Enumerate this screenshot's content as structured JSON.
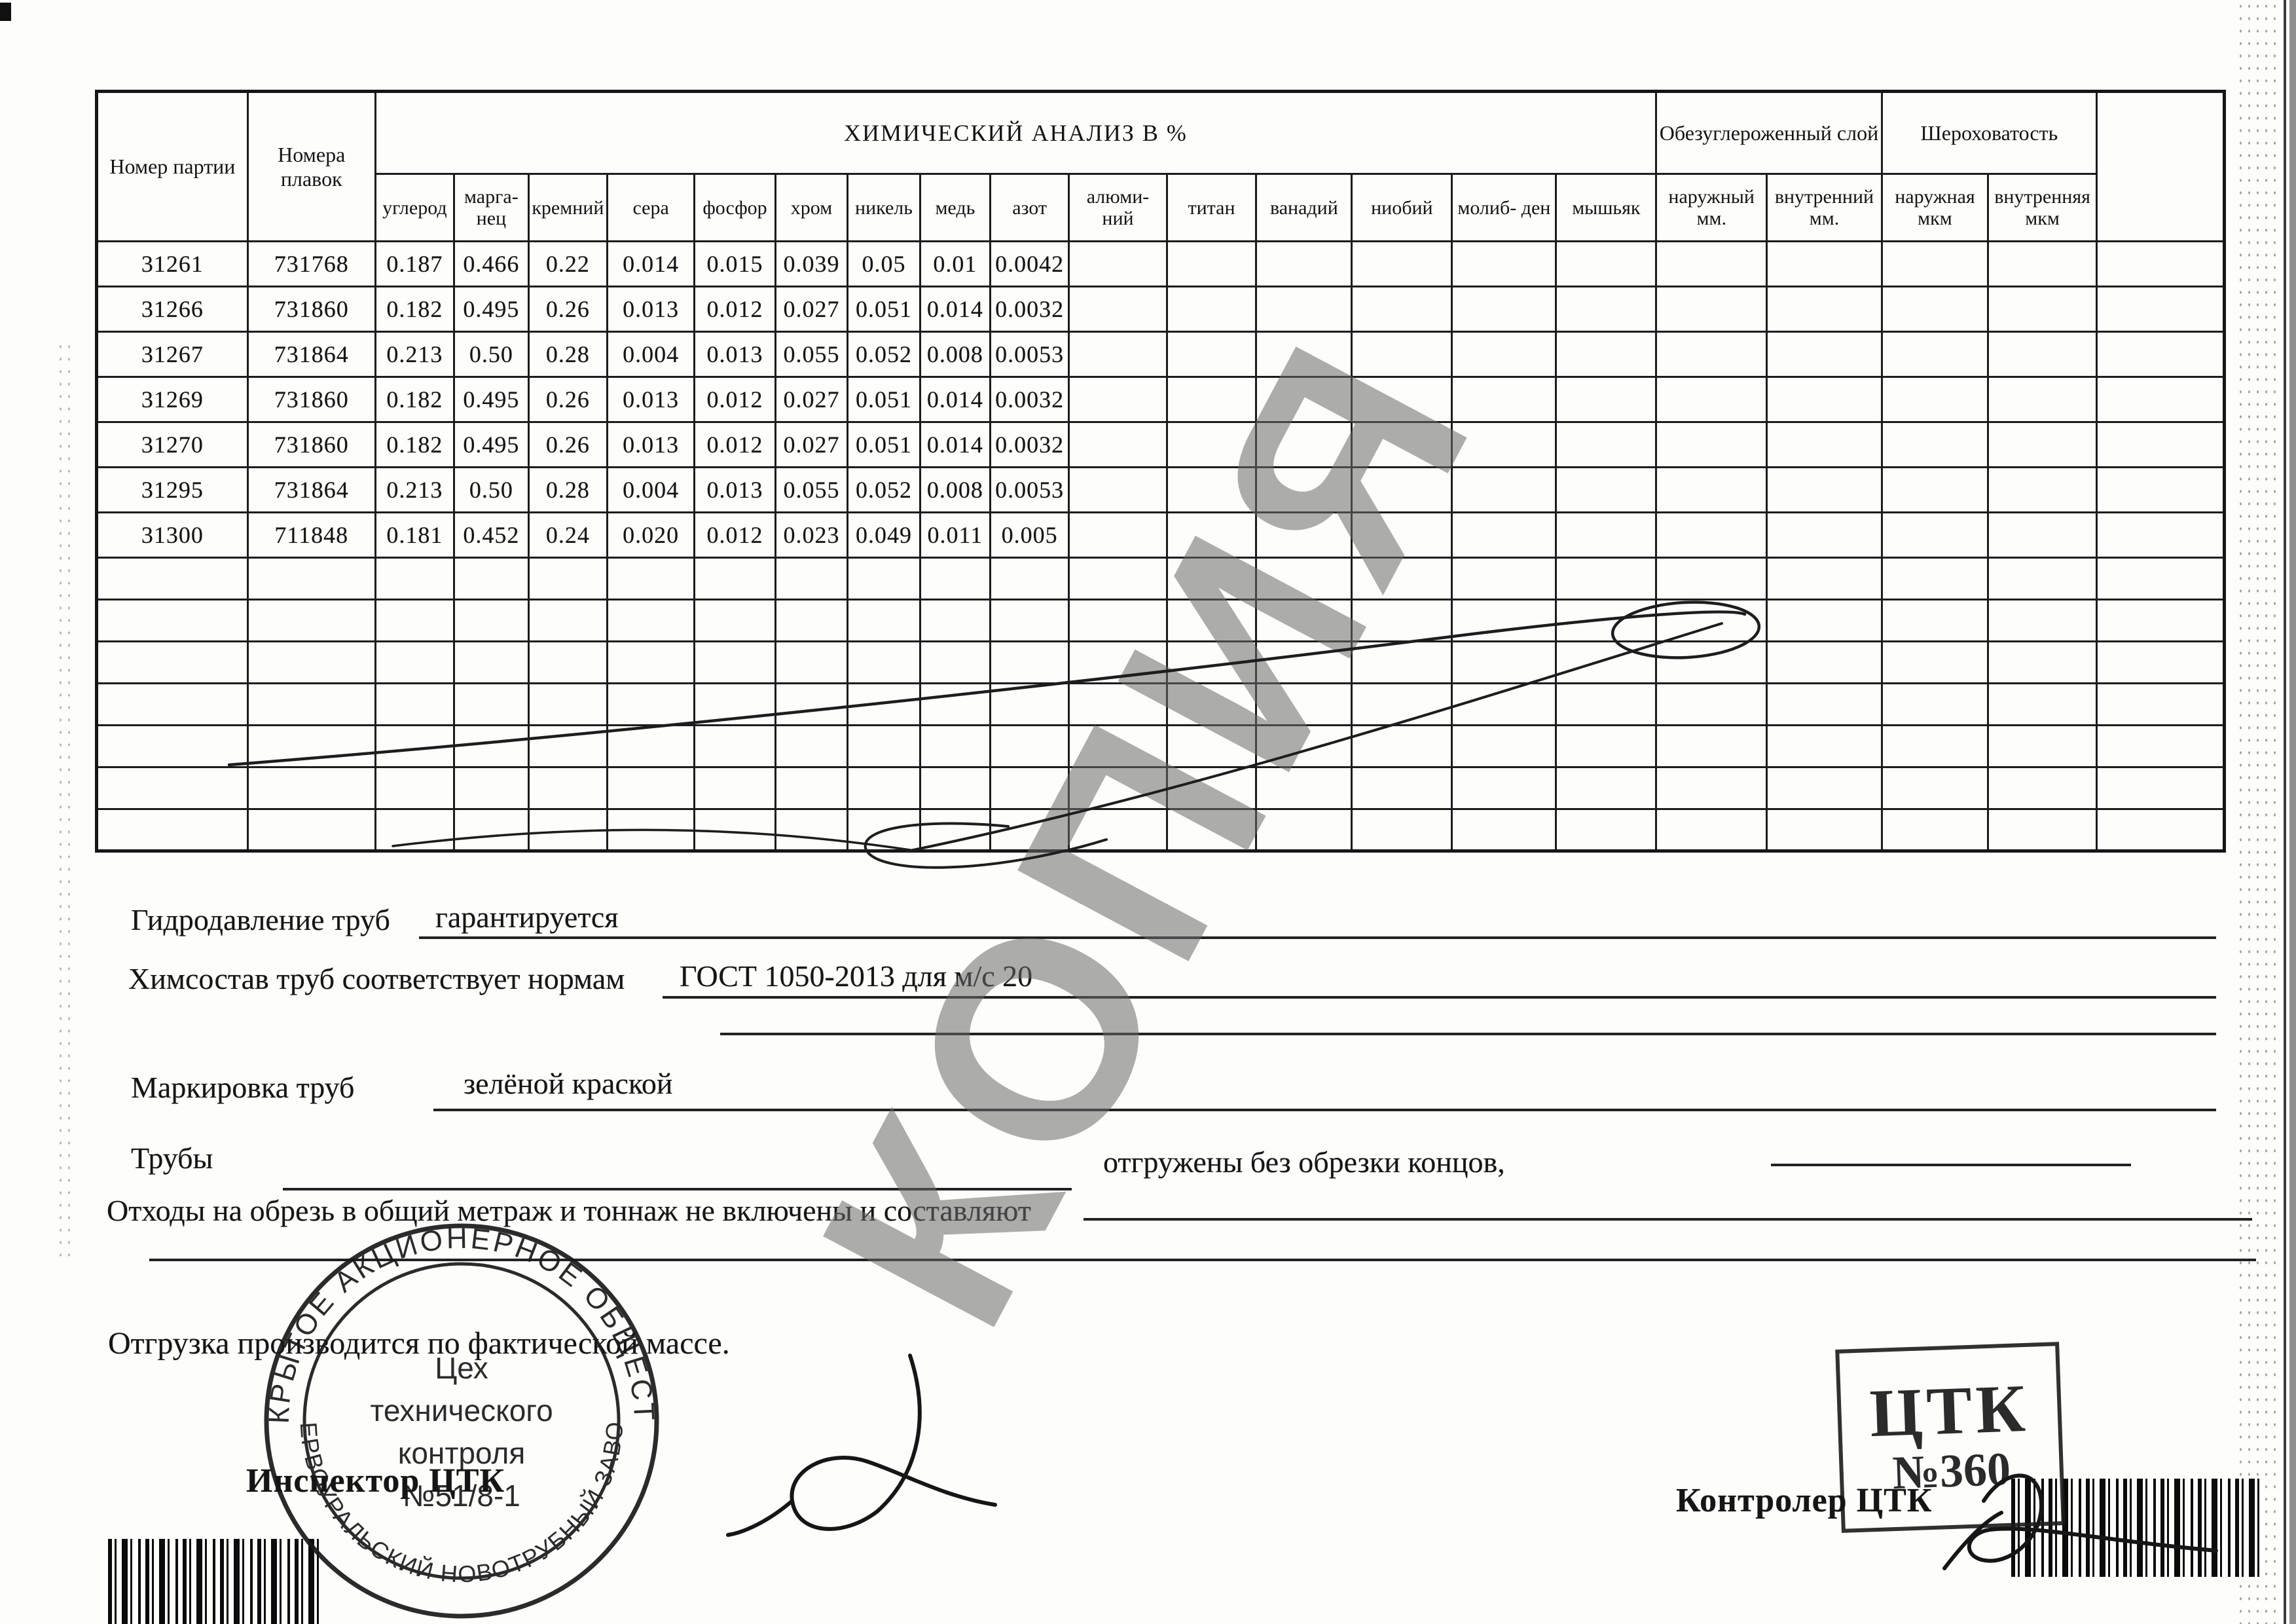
{
  "watermark": "КОПИЯ",
  "table": {
    "col_batch": "Номер партии",
    "col_heats": "Номера плавок",
    "group_chem": "ХИМИЧЕСКИЙ АНАЛИЗ В %",
    "group_decarb": "Обезуглероженный слой",
    "group_rough": "Шероховатость",
    "chem_columns": [
      "углерод",
      "марга- нец",
      "кремний",
      "сера",
      "фосфор",
      "хром",
      "никель",
      "медь",
      "азот",
      "алюми- ний",
      "титан",
      "ванадий",
      "ниобий",
      "молиб- ден",
      "мышьяк"
    ],
    "decarb_columns": [
      "наружный мм.",
      "внутренний мм."
    ],
    "rough_columns": [
      "наружная мкм",
      "внутренняя мкм"
    ],
    "rows": [
      {
        "batch": "31261",
        "heat": "731768",
        "values": [
          "0.187",
          "0.466",
          "0.22",
          "0.014",
          "0.015",
          "0.039",
          "0.05",
          "0.01",
          "0.0042"
        ]
      },
      {
        "batch": "31266",
        "heat": "731860",
        "values": [
          "0.182",
          "0.495",
          "0.26",
          "0.013",
          "0.012",
          "0.027",
          "0.051",
          "0.014",
          "0.0032"
        ]
      },
      {
        "batch": "31267",
        "heat": "731864",
        "values": [
          "0.213",
          "0.50",
          "0.28",
          "0.004",
          "0.013",
          "0.055",
          "0.052",
          "0.008",
          "0.0053"
        ]
      },
      {
        "batch": "31269",
        "heat": "731860",
        "values": [
          "0.182",
          "0.495",
          "0.26",
          "0.013",
          "0.012",
          "0.027",
          "0.051",
          "0.014",
          "0.0032"
        ]
      },
      {
        "batch": "31270",
        "heat": "731860",
        "values": [
          "0.182",
          "0.495",
          "0.26",
          "0.013",
          "0.012",
          "0.027",
          "0.051",
          "0.014",
          "0.0032"
        ]
      },
      {
        "batch": "31295",
        "heat": "731864",
        "values": [
          "0.213",
          "0.50",
          "0.28",
          "0.004",
          "0.013",
          "0.055",
          "0.052",
          "0.008",
          "0.0053"
        ]
      },
      {
        "batch": "31300",
        "heat": "711848",
        "values": [
          "0.181",
          "0.452",
          "0.24",
          "0.020",
          "0.012",
          "0.023",
          "0.049",
          "0.011",
          "0.005"
        ]
      }
    ],
    "empty_row_count": 7
  },
  "fields": {
    "hydro_label": "Гидродавление труб",
    "hydro_value": "гарантируется",
    "chem_label": "Химсостав труб соответствует нормам",
    "chem_value": "ГОСТ 1050-2013 для м/с 20",
    "marking_label": "Маркировка труб",
    "marking_value": "зелёной краской",
    "pipes_label": "Трубы",
    "pipes_note": "отгружены без обрезки концов,",
    "waste_line": "Отходы на обрезь в общий метраж и тоннаж не включены и составляют",
    "shipping_line": "Отгрузка производится по фактической массе."
  },
  "signatures": {
    "inspector_label": "Инспектор ЦТК",
    "controller_label": "Контролер ЦТК"
  },
  "stamps": {
    "round_ring_top": "ОТКРЫТОЕ АКЦИОНЕРНОЕ ОБЩЕСТВО",
    "round_ring_bottom": "«ПЕРВОУРАЛЬСКИЙ НОВОТРУБНЫЙ ЗАВОД»",
    "round_center_lines": [
      "Цех",
      "технического",
      "контроля",
      "№51/8-1"
    ],
    "rect_line1": "ЦТК",
    "rect_line2": "№360"
  }
}
